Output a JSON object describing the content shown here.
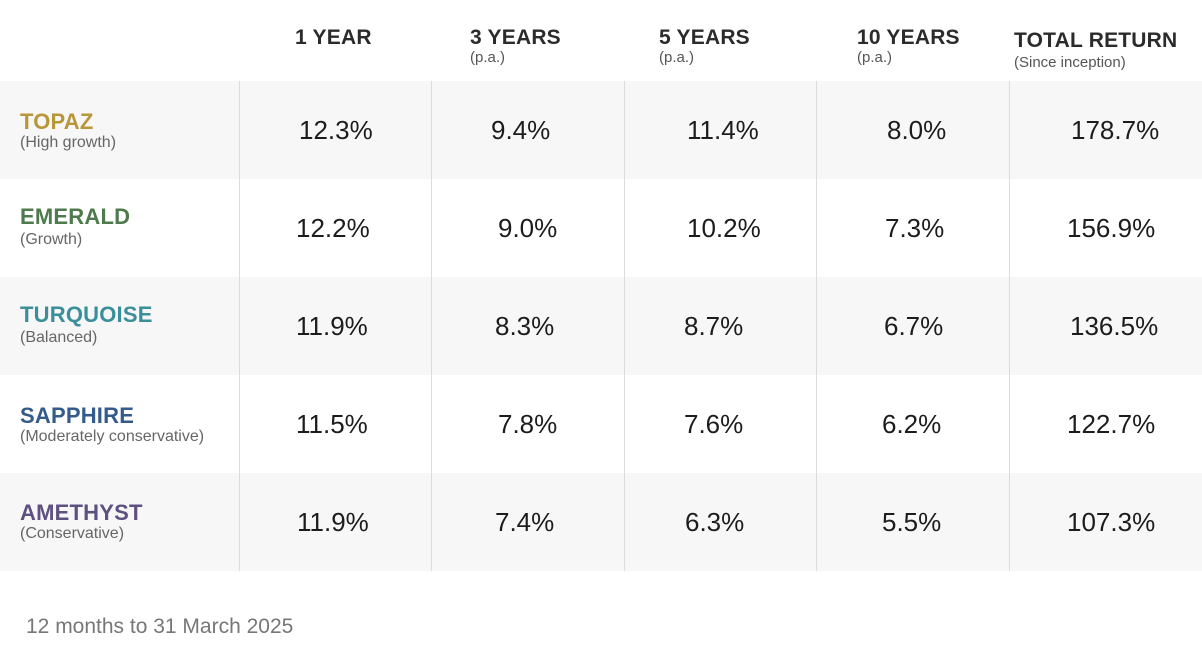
{
  "headers": [
    {
      "title": "1 YEAR",
      "sub": ""
    },
    {
      "title": "3 YEARS",
      "sub": "(p.a.)"
    },
    {
      "title": "5 YEARS",
      "sub": "(p.a.)"
    },
    {
      "title": "10 YEARS",
      "sub": "(p.a.)"
    },
    {
      "title": "TOTAL RETURN",
      "sub": "(Since inception)"
    }
  ],
  "funds": [
    {
      "name": "TOPAZ",
      "risk": "(High growth)",
      "color": "#b8963a",
      "values": [
        "12.3%",
        "9.4%",
        "11.4%",
        "8.0%",
        "178.7%"
      ]
    },
    {
      "name": "EMERALD",
      "risk": "(Growth)",
      "color": "#4e7a4e",
      "values": [
        "12.2%",
        "9.0%",
        "10.2%",
        "7.3%",
        "156.9%"
      ]
    },
    {
      "name": "TURQUOISE",
      "risk": "(Balanced)",
      "color": "#3a8f9a",
      "values": [
        "11.9%",
        "8.3%",
        "8.7%",
        "6.7%",
        "136.5%"
      ]
    },
    {
      "name": "SAPPHIRE",
      "risk": "(Moderately conservative)",
      "color": "#355a8c",
      "values": [
        "11.5%",
        "7.8%",
        "7.6%",
        "6.2%",
        "122.7%"
      ]
    },
    {
      "name": "AMETHYST",
      "risk": "(Conservative)",
      "color": "#5e5080",
      "values": [
        "11.9%",
        "7.4%",
        "6.3%",
        "5.5%",
        "107.3%"
      ]
    }
  ],
  "footnote": "12 months to 31 March 2025"
}
